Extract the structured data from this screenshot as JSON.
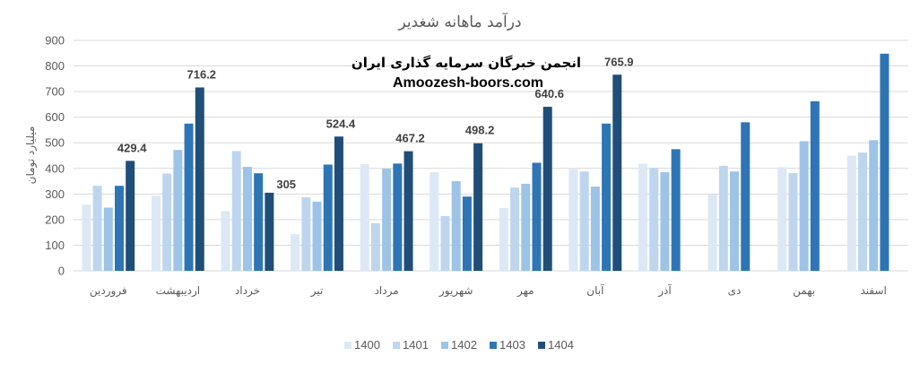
{
  "chart_data": {
    "type": "bar",
    "title": "درآمد ماهانه شغدیر",
    "ylabel": "میلیارد تومان",
    "xlabel": "",
    "ylim": [
      0,
      900
    ],
    "yticks": [
      0,
      100,
      200,
      300,
      400,
      500,
      600,
      700,
      800,
      900
    ],
    "grid": true,
    "legend_position": "bottom",
    "categories": [
      "فروردین",
      "اردیبهشت",
      "خرداد",
      "تیر",
      "مرداد",
      "شهریور",
      "مهر",
      "آبان",
      "آذر",
      "دی",
      "بهمن",
      "اسفند"
    ],
    "series": [
      {
        "name": "1400",
        "color": "#dce8f5",
        "values": [
          258,
          293,
          233,
          143,
          417,
          385,
          245,
          397,
          418,
          298,
          405,
          450
        ]
      },
      {
        "name": "1401",
        "color": "#bdd6ee",
        "values": [
          332,
          380,
          468,
          287,
          186,
          214,
          325,
          388,
          402,
          410,
          382,
          462
        ]
      },
      {
        "name": "1402",
        "color": "#9dc3e6",
        "values": [
          247,
          472,
          406,
          270,
          399,
          350,
          340,
          329,
          385,
          388,
          506,
          510
        ]
      },
      {
        "name": "1403",
        "color": "#2e75b6",
        "values": [
          332,
          575,
          381,
          415,
          419,
          290,
          422,
          575,
          475,
          580,
          662,
          848
        ]
      },
      {
        "name": "1404",
        "color": "#1f4e79",
        "values": [
          429.4,
          716.2,
          305,
          524.4,
          467.2,
          498.2,
          640.6,
          765.9,
          null,
          null,
          null,
          null
        ]
      }
    ],
    "data_labels": [
      "429.4",
      "716.2",
      "305",
      "524.4",
      "467.2",
      "498.2",
      "640.6",
      "765.9"
    ]
  },
  "watermark": {
    "line1": "انجمن خبرگان سرمایه گذاری ایران",
    "line2": "Amoozesh-boors.com"
  }
}
